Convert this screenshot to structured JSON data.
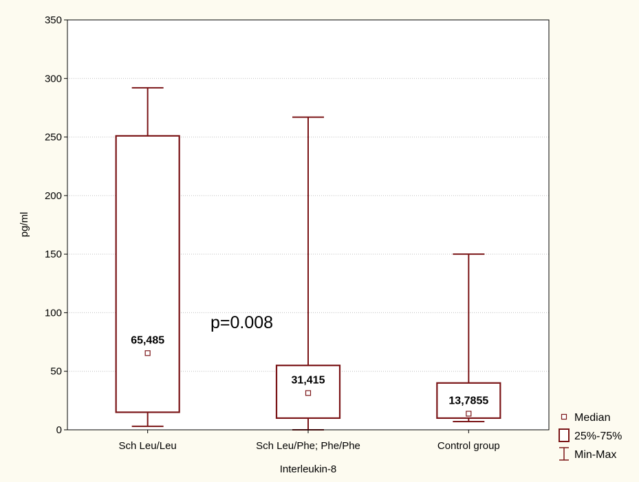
{
  "chart_data": {
    "type": "boxplot",
    "title": "",
    "xlabel": "Interleukin-8",
    "ylabel": "pg/ml",
    "ylim": [
      0,
      350
    ],
    "yticks": [
      0,
      50,
      100,
      150,
      200,
      250,
      300,
      350
    ],
    "grid": true,
    "legend_position": "bottom-right",
    "annotation": "p=0.008",
    "categories": [
      "Sch Leu/Leu",
      "Sch Leu/Phe; Phe/Phe",
      "Control group"
    ],
    "boxes": [
      {
        "category": "Sch Leu/Leu",
        "min": 3,
        "q1": 15,
        "median": 65.485,
        "q3": 251,
        "max": 292,
        "median_label": "65,485"
      },
      {
        "category": "Sch Leu/Phe; Phe/Phe",
        "min": 0,
        "q1": 10,
        "median": 31.415,
        "q3": 55,
        "max": 267,
        "median_label": "31,415"
      },
      {
        "category": "Control group",
        "min": 7,
        "q1": 10,
        "median": 13.7855,
        "q3": 40,
        "max": 150,
        "median_label": "13,7855"
      }
    ],
    "legend": [
      {
        "symbol": "median",
        "label": "Median"
      },
      {
        "symbol": "box",
        "label": "25%-75%"
      },
      {
        "symbol": "whisker",
        "label": "Min-Max"
      }
    ],
    "colors": {
      "background": "#fdfbf0",
      "plot_area": "#ffffff",
      "box": "#7a1416",
      "grid": "#bdbdbd"
    }
  }
}
